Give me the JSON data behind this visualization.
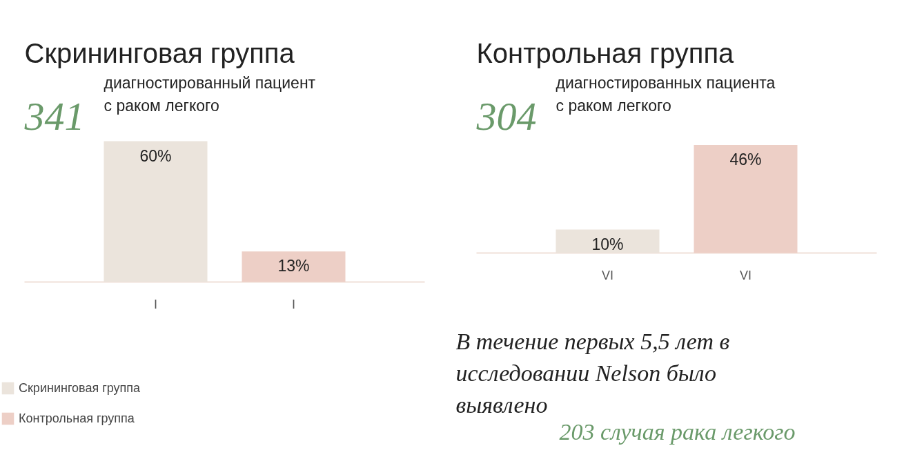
{
  "chart_data": [
    {
      "type": "bar",
      "title": "Скрининговая группа",
      "subtitle": "диагностированный пациент\nс раком легкого",
      "annotations": [
        "341"
      ],
      "categories": [
        "I",
        "I"
      ],
      "legend": "bottom left",
      "series": [
        {
          "name": "Скрининговая группа",
          "color": "#ebe4dc",
          "values": [
            60,
            null
          ],
          "value_labels": [
            "60%",
            null
          ]
        },
        {
          "name": "Контрольная группа",
          "color": "#edcfc6",
          "values": [
            null,
            13
          ],
          "value_labels": [
            null,
            "13%"
          ]
        }
      ]
    },
    {
      "type": "bar",
      "title": "Контрольная группа",
      "subtitle": "диагностированных пациента\nс раком легкого",
      "annotations": [
        "304",
        "В течение первых 5,5 лет в\nисследовании Nelson было\nвыявлено",
        "203 случая рака легкого"
      ],
      "categories": [
        "VI",
        "VI"
      ],
      "series": [
        {
          "color": "#ebe4dc",
          "values": [
            10,
            null
          ],
          "value_labels": [
            "10%",
            null
          ]
        },
        {
          "color": "#edcfc6",
          "values": [
            null,
            46
          ],
          "value_labels": [
            null,
            "46%"
          ]
        }
      ]
    }
  ]
}
